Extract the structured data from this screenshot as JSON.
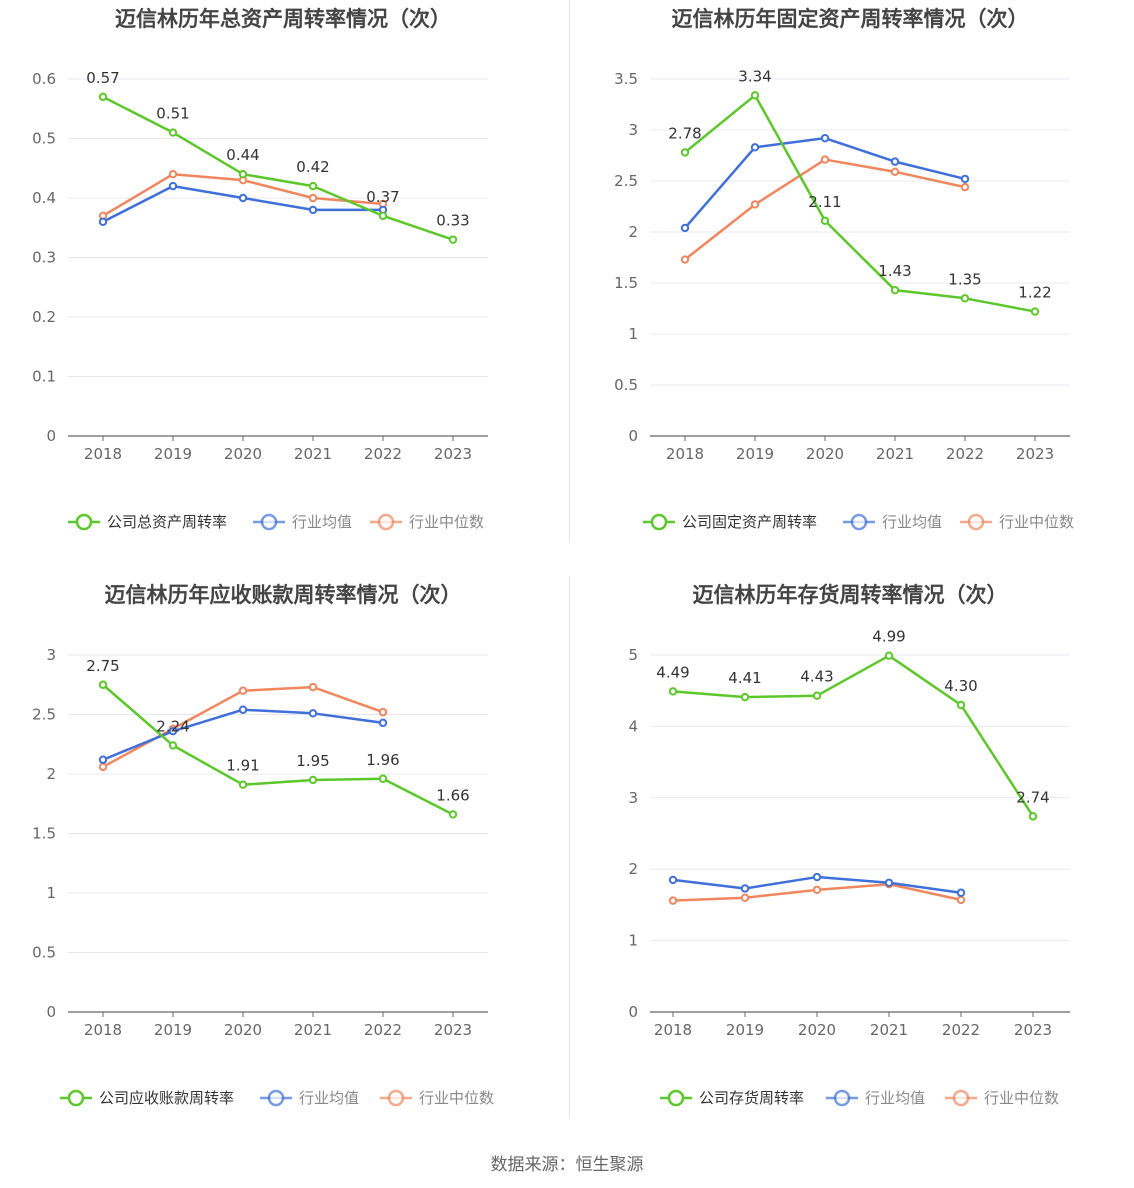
{
  "source": "数据来源：恒生聚源",
  "colors": {
    "company": "#5cc72a",
    "avg": "#3f6fd8",
    "median": "#f0865e",
    "grid": "#e6e8f0",
    "axis": "#666666",
    "title": "#444444"
  },
  "chart_data": [
    {
      "type": "line",
      "title": "迈信林历年总资产周转率情况（次）",
      "categories": [
        "2018",
        "2019",
        "2020",
        "2021",
        "2022",
        "2023"
      ],
      "yticks": [
        "0",
        "0.1",
        "0.2",
        "0.3",
        "0.4",
        "0.5",
        "0.6"
      ],
      "ylim": [
        0,
        0.6
      ],
      "series": [
        {
          "name": "公司总资产周转率",
          "values": [
            0.57,
            0.51,
            0.44,
            0.42,
            0.37,
            0.33
          ],
          "labels": [
            "0.57",
            "0.51",
            "0.44",
            "0.42",
            "0.37",
            "0.33"
          ]
        },
        {
          "name": "行业均值",
          "values": [
            0.36,
            0.42,
            0.4,
            0.38,
            0.38,
            null
          ]
        },
        {
          "name": "行业中位数",
          "values": [
            0.37,
            0.44,
            0.43,
            0.4,
            0.39,
            null
          ]
        }
      ]
    },
    {
      "type": "line",
      "title": "迈信林历年固定资产周转率情况（次）",
      "categories": [
        "2018",
        "2019",
        "2020",
        "2021",
        "2022",
        "2023"
      ],
      "yticks": [
        "0",
        "0.5",
        "1",
        "1.5",
        "2",
        "2.5",
        "3",
        "3.5"
      ],
      "ylim": [
        0,
        3.5
      ],
      "series": [
        {
          "name": "公司固定资产周转率",
          "values": [
            2.78,
            3.34,
            2.11,
            1.43,
            1.35,
            1.22
          ],
          "labels": [
            "2.78",
            "3.34",
            "2.11",
            "1.43",
            "1.35",
            "1.22"
          ]
        },
        {
          "name": "行业均值",
          "values": [
            2.04,
            2.83,
            2.92,
            2.69,
            2.52,
            null
          ]
        },
        {
          "name": "行业中位数",
          "values": [
            1.73,
            2.27,
            2.71,
            2.59,
            2.44,
            null
          ]
        }
      ]
    },
    {
      "type": "line",
      "title": "迈信林历年应收账款周转率情况（次）",
      "categories": [
        "2018",
        "2019",
        "2020",
        "2021",
        "2022",
        "2023"
      ],
      "yticks": [
        "0",
        "0.5",
        "1",
        "1.5",
        "2",
        "2.5",
        "3"
      ],
      "ylim": [
        0,
        3
      ],
      "series": [
        {
          "name": "公司应收账款周转率",
          "values": [
            2.75,
            2.24,
            1.91,
            1.95,
            1.96,
            1.66
          ],
          "labels": [
            "2.75",
            "2.24",
            "1.91",
            "1.95",
            "1.96",
            "1.66"
          ]
        },
        {
          "name": "行业均值",
          "values": [
            2.12,
            2.36,
            2.54,
            2.51,
            2.43,
            null
          ]
        },
        {
          "name": "行业中位数",
          "values": [
            2.06,
            2.38,
            2.7,
            2.73,
            2.52,
            null
          ]
        }
      ]
    },
    {
      "type": "line",
      "title": "迈信林历年存货周转率情况（次）",
      "categories": [
        "2018",
        "2019",
        "2020",
        "2021",
        "2022",
        "2023"
      ],
      "yticks": [
        "0",
        "1",
        "2",
        "3",
        "4",
        "5"
      ],
      "ylim": [
        0,
        5
      ],
      "series": [
        {
          "name": "公司存货周转率",
          "values": [
            4.49,
            4.41,
            4.43,
            4.99,
            4.3,
            2.74
          ],
          "labels": [
            "4.49",
            "4.41",
            "4.43",
            "4.99",
            "4.30",
            "2.74"
          ]
        },
        {
          "name": "行业均值",
          "values": [
            1.85,
            1.73,
            1.89,
            1.81,
            1.67,
            null
          ]
        },
        {
          "name": "行业中位数",
          "values": [
            1.56,
            1.6,
            1.71,
            1.79,
            1.57,
            null
          ]
        }
      ]
    }
  ]
}
